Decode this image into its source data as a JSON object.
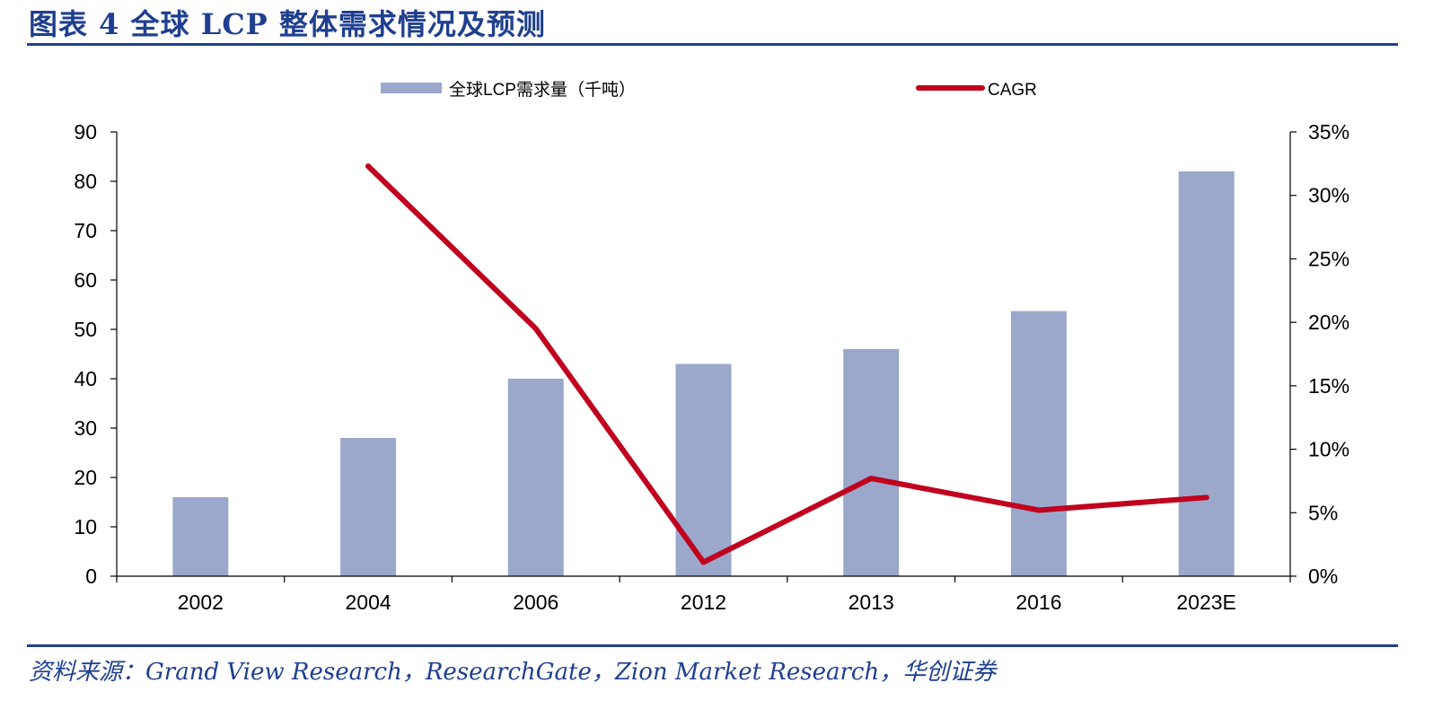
{
  "figure": {
    "title": "图表 4   全球 LCP 整体需求情况及预测",
    "source": "资料来源：Grand View Research，ResearchGate，Zion Market Research，华创证券"
  },
  "colors": {
    "bar": "#9ba8cb",
    "line": "#c0001e",
    "axis": "#000000",
    "title": "#1f3f8f"
  },
  "chart_data": {
    "type": "bar",
    "categories": [
      "2002",
      "2004",
      "2006",
      "2012",
      "2013",
      "2016",
      "2023E"
    ],
    "series": [
      {
        "name": "全球LCP需求量（千吨）",
        "type": "bar",
        "axis": "left",
        "values": [
          16,
          28,
          40,
          43,
          46,
          53.7,
          82
        ]
      },
      {
        "name": "CAGR",
        "type": "line",
        "axis": "right",
        "values": [
          null,
          32.3,
          19.5,
          1.1,
          7.7,
          5.2,
          6.2
        ]
      }
    ],
    "ylim": [
      0,
      90
    ],
    "yticks": [
      "0",
      "10",
      "20",
      "30",
      "40",
      "50",
      "60",
      "70",
      "80",
      "90"
    ],
    "y2lim": [
      0,
      35
    ],
    "y2ticks": [
      "0%",
      "5%",
      "10%",
      "15%",
      "20%",
      "25%",
      "30%",
      "35%"
    ],
    "legend": [
      "全球LCP需求量（千吨）",
      "CAGR"
    ],
    "legend_position": "top",
    "grid": false
  }
}
